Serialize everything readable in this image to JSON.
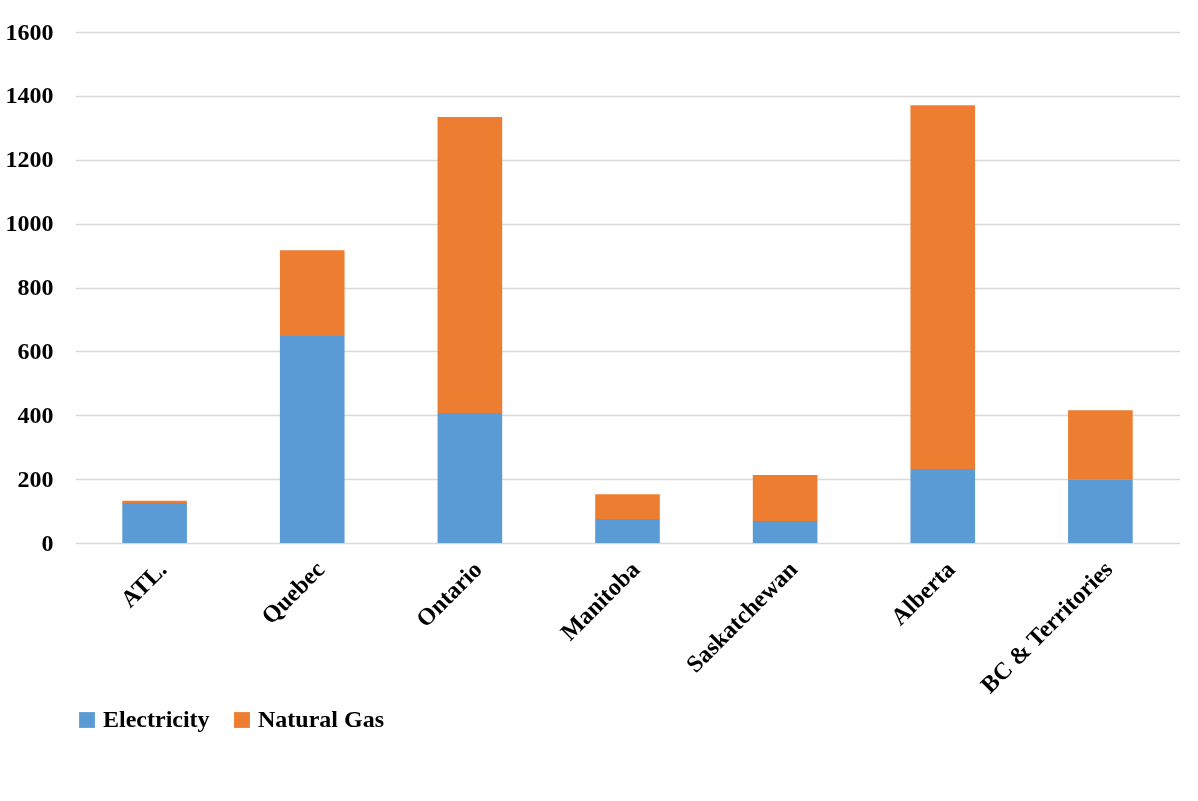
{
  "chart_data": {
    "type": "bar",
    "stacked": true,
    "categories": [
      "ATL.",
      "Quebec",
      "Ontario",
      "Manitoba",
      "Saskatchewan",
      "Alberta",
      "BC & Territories"
    ],
    "series": [
      {
        "name": "Electricity",
        "color": "#5b9bd5",
        "values": [
          125,
          648,
          407,
          75,
          69,
          232,
          200
        ]
      },
      {
        "name": "Natural Gas",
        "color": "#ed7d31",
        "values": [
          7,
          269,
          927,
          78,
          144,
          1139,
          216
        ]
      }
    ],
    "ylim": [
      0,
      1600
    ],
    "yticks": [
      0,
      200,
      400,
      600,
      800,
      1000,
      1200,
      1400,
      1600
    ],
    "grid": "y",
    "legend": "bottom"
  }
}
